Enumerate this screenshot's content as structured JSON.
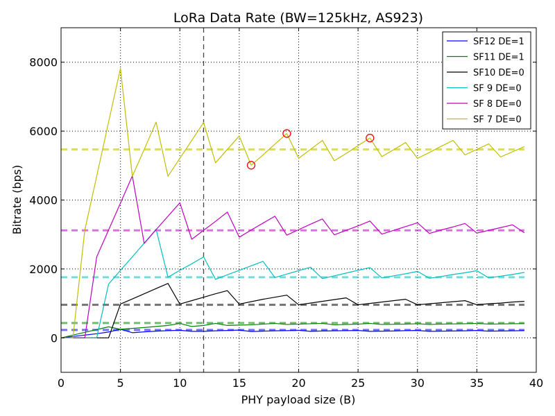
{
  "chart_data": {
    "type": "line",
    "title": "LoRa Data Rate (BW=125kHz, AS923)",
    "xlabel": "PHY payload size (B)",
    "ylabel": "Bitrate (bps)",
    "xlim": [
      0,
      40
    ],
    "ylim": [
      -1000,
      9000
    ],
    "xticks": [
      0,
      5,
      10,
      15,
      20,
      25,
      30,
      35,
      40
    ],
    "yticks": [
      0,
      2000,
      4000,
      6000,
      8000
    ],
    "grid": "dotted",
    "legend_position": "top-right",
    "vertical_reference_line": {
      "x": 12,
      "style": "dashed",
      "color": "#444444"
    },
    "x": [
      0,
      1,
      2,
      3,
      4,
      5,
      6,
      7,
      8,
      9,
      10,
      11,
      12,
      13,
      14,
      15,
      16,
      17,
      18,
      19,
      20,
      21,
      22,
      23,
      24,
      25,
      26,
      27,
      28,
      29,
      30,
      31,
      32,
      33,
      34,
      35,
      36,
      37,
      38,
      39
    ],
    "series": [
      {
        "name": "SF12 DE=1",
        "color": "#0000ff",
        "values": [
          0,
          40,
          80,
          120,
          170,
          250,
          150,
          175,
          195,
          210,
          220,
          190,
          190,
          205,
          215,
          225,
          185,
          195,
          205,
          210,
          220,
          190,
          200,
          205,
          210,
          215,
          190,
          195,
          200,
          210,
          215,
          190,
          195,
          200,
          205,
          215,
          195,
          200,
          205,
          210
        ],
        "average": 230
      },
      {
        "name": "SF11 DE=1",
        "color": "#008000",
        "values": [
          0,
          80,
          160,
          240,
          320,
          250,
          275,
          300,
          330,
          360,
          420,
          330,
          360,
          420,
          360,
          370,
          380,
          400,
          420,
          390,
          400,
          410,
          420,
          380,
          390,
          400,
          420,
          390,
          395,
          400,
          410,
          390,
          400,
          405,
          410,
          420,
          400,
          405,
          410,
          415
        ],
        "average": 430
      },
      {
        "name": "SF10 DE=0",
        "color": "#000000",
        "values": [
          0,
          0,
          0,
          0,
          0,
          980,
          1130,
          1280,
          1430,
          1580,
          980,
          1080,
          1180,
          1280,
          1370,
          980,
          1050,
          1120,
          1180,
          1240,
          960,
          1010,
          1060,
          1110,
          1160,
          960,
          1000,
          1040,
          1080,
          1120,
          960,
          990,
          1020,
          1050,
          1080,
          960,
          990,
          1010,
          1040,
          1060
        ],
        "average": 960
      },
      {
        "name": "SF 9 DE=0",
        "color": "#00bfbf",
        "values": [
          0,
          0,
          0,
          0,
          1560,
          1960,
          2350,
          2750,
          3150,
          1760,
          1960,
          2150,
          2350,
          1700,
          1830,
          1960,
          2090,
          2220,
          1750,
          1850,
          1950,
          2050,
          1720,
          1800,
          1880,
          1960,
          2040,
          1740,
          1800,
          1860,
          1930,
          1730,
          1780,
          1840,
          1890,
          1950,
          1740,
          1790,
          1840,
          1900
        ],
        "average": 1760
      },
      {
        "name": "SF 8 DE=0",
        "color": "#bf00bf",
        "values": [
          0,
          0,
          0,
          2350,
          3130,
          3910,
          4700,
          2740,
          3140,
          3530,
          3920,
          2860,
          3120,
          3380,
          3650,
          2920,
          3130,
          3330,
          3530,
          2980,
          3140,
          3300,
          3450,
          2990,
          3120,
          3250,
          3390,
          3010,
          3120,
          3230,
          3340,
          3030,
          3130,
          3220,
          3320,
          3040,
          3120,
          3200,
          3280,
          3050
        ],
        "average": 3120
      },
      {
        "name": "SF 7 DE=0",
        "color": "#bfbf00",
        "values": [
          0,
          0,
          3130,
          4690,
          6260,
          7820,
          4690,
          5470,
          6260,
          4690,
          5210,
          5730,
          6250,
          5080,
          5470,
          5860,
          5010,
          5310,
          5620,
          5930,
          5210,
          5470,
          5730,
          5140,
          5350,
          5580,
          5800,
          5260,
          5460,
          5670,
          5210,
          5380,
          5560,
          5730,
          5310,
          5470,
          5630,
          5250,
          5400,
          5550
        ],
        "average": 5470
      }
    ],
    "highlighted_points": [
      {
        "x": 16,
        "y": 5010
      },
      {
        "x": 19,
        "y": 5930
      },
      {
        "x": 26,
        "y": 5800
      }
    ]
  }
}
